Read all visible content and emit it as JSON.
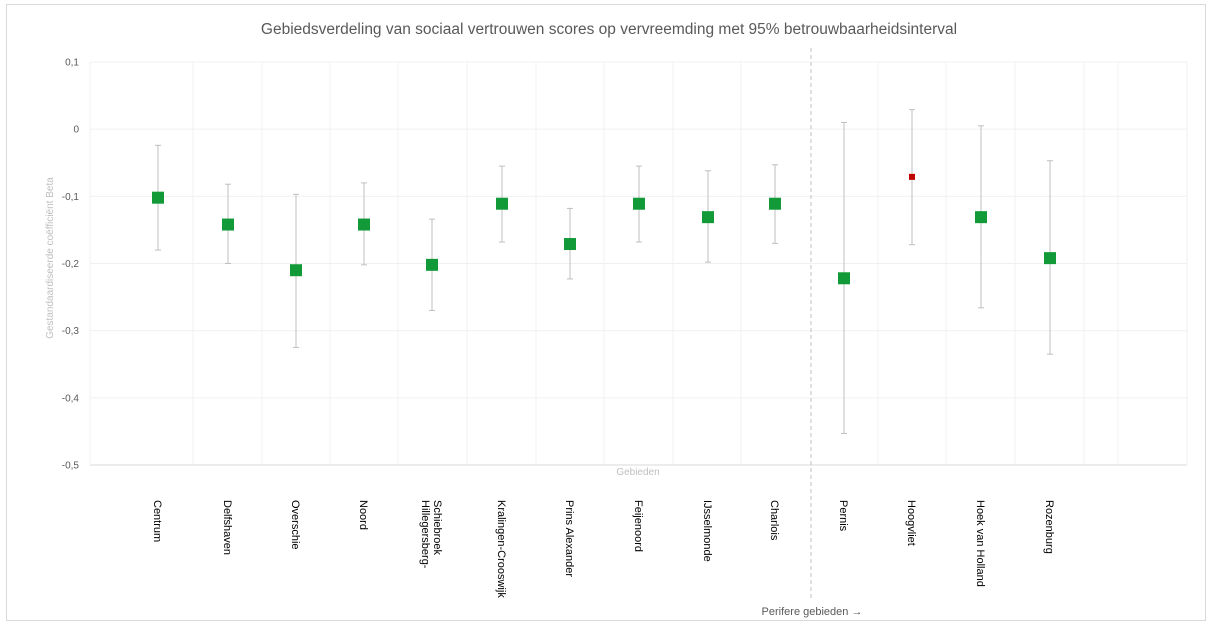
{
  "chart_data": {
    "type": "scatter",
    "title": "Gebiedsverdeling  van sociaal vertrouwen scores op vervreemding met 95% betrouwbaarheidsinterval",
    "xlabel": "Gebieden",
    "ylabel": "Gestandaardiseerde coëfficiënt Beta",
    "ylim": [
      -0.5,
      0.1
    ],
    "yticks": [
      0.1,
      0,
      -0.1,
      -0.2,
      -0.3,
      -0.4,
      -0.5
    ],
    "ytick_labels": [
      "0,1",
      "0",
      "-0,1",
      "-0,2",
      "-0,3",
      "-0,4",
      "-0,5"
    ],
    "grid": true,
    "separator_label": "Perifere gebieden →",
    "colors": {
      "marker": "#129a38",
      "highlight": "#c00000",
      "errorbar": "#bfbfbf",
      "grid": "#f0f0f0"
    },
    "categories": [
      "Centrum",
      "Delfshaven",
      "Overschie",
      "Noord",
      "Hillegersberg-\nSchiebroek",
      "Kralingen-Crooswijk",
      "Prins Alexander",
      "Feijenoord",
      "IJsselmonde",
      "Charlois",
      "Pernis",
      "Hoogvliet",
      "Hoek van Holland",
      "Rozenburg"
    ],
    "values": [
      -0.102,
      -0.142,
      -0.21,
      -0.142,
      -0.202,
      -0.111,
      -0.171,
      -0.111,
      -0.131,
      -0.111,
      -0.222,
      -0.071,
      -0.131,
      -0.192
    ],
    "ci_upper": [
      -0.024,
      -0.082,
      -0.097,
      -0.08,
      -0.134,
      -0.055,
      -0.118,
      -0.055,
      -0.062,
      -0.053,
      0.01,
      0.029,
      0.005,
      -0.047
    ],
    "ci_lower": [
      -0.18,
      -0.2,
      -0.325,
      -0.202,
      -0.27,
      -0.168,
      -0.223,
      -0.168,
      -0.198,
      -0.17,
      -0.453,
      -0.172,
      -0.266,
      -0.335
    ],
    "highlight_index": 11
  }
}
